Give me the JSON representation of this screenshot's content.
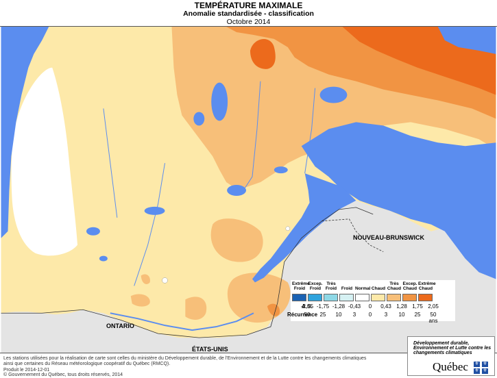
{
  "title": {
    "main": "TEMPÉRATURE MAXIMALE",
    "subtitle": "Anomalie standardisée - classification",
    "period": "Octobre 2014"
  },
  "map_labels": {
    "nb": "NOUVEAU-BRUNSWICK",
    "ontario": "ONTARIO",
    "usa": "ÉTATS-UNIS"
  },
  "legend": {
    "row_as": "A.S.",
    "row_rec": "Récurrence",
    "classes": [
      {
        "label": "Extrême Froid",
        "color": "#1b62b3"
      },
      {
        "label": "Excep. Froid",
        "color": "#2fa3dd"
      },
      {
        "label": "Très Froid",
        "color": "#8ed8e6"
      },
      {
        "label": "Froid",
        "color": "#d6f1f3"
      },
      {
        "label": "Normal",
        "color": "#ffffff"
      },
      {
        "label": "Chaud",
        "color": "#fde9a9"
      },
      {
        "label": "Très Chaud",
        "color": "#f7bf79"
      },
      {
        "label": "Excep. Chaud",
        "color": "#f19443"
      },
      {
        "label": "Extrême Chaud",
        "color": "#ec6a1c"
      }
    ],
    "as_values": [
      "-2,05",
      "-1,75",
      "-1,28",
      "-0,43",
      "0",
      "0,43",
      "1,28",
      "1,75",
      "2,05"
    ],
    "rec_values": [
      "50",
      "25",
      "10",
      "3",
      "0",
      "3",
      "10",
      "25",
      "50 ans"
    ]
  },
  "footer": {
    "line1": "Les stations utilisées pour la réalisation de carte sont celles du ministère du Développement durable, de l'Environnement et de la Lutte contre les changements climatiques",
    "line2": "ainsi que certaines du Réseau météorologique coopératif du Québec (RMCQ).",
    "produced": "Produit le 2014-12-01",
    "copyright": "© Gouvernement du Québec, tous droits réservés, 2014"
  },
  "logo": {
    "ministry": "Développement durable, Environnement et Lutte contre les changements climatiques",
    "name": "Québec"
  },
  "colors": {
    "water": "#5b8def",
    "land_grey": "#e4e4e4",
    "normal": "#ffffff",
    "chaud": "#fde9a9",
    "tres_chaud": "#f7bf79",
    "excep_chaud": "#f19443",
    "extreme_chaud": "#ec6a1c"
  }
}
